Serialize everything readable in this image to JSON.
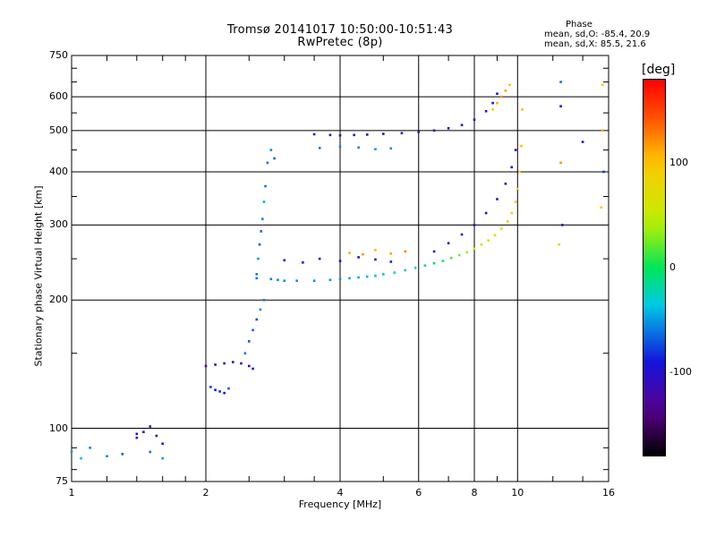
{
  "chart_data": {
    "type": "scatter",
    "title": "Tromsø 20141017 10:50:00-10:51:43",
    "subtitle": "RwPretec (8p)",
    "phase_stats": {
      "heading": "Phase",
      "o_label": "mean, sd,O:",
      "o_values": "-85.4, 20.9",
      "x_label": "mean, sd,X:",
      "x_values": "85.5, 21.6"
    },
    "xlabel": "Frequency [MHz]",
    "ylabel": "Stationary phase Virtual Height [km]",
    "x_scale": "log",
    "y_scale": "log",
    "xlim": [
      1,
      16
    ],
    "ylim": [
      75,
      750
    ],
    "x_ticks": [
      "1",
      "2",
      "4",
      "6",
      "8",
      "10",
      "16"
    ],
    "x_tick_values": [
      1,
      2,
      4,
      6,
      8,
      10,
      16
    ],
    "y_ticks": [
      "750",
      "600",
      "500",
      "400",
      "300",
      "200",
      "100",
      "75"
    ],
    "y_tick_values": [
      750,
      600,
      500,
      400,
      300,
      200,
      100,
      75
    ],
    "grid_x": [
      2,
      4,
      6,
      8,
      10
    ],
    "grid_y": [
      600,
      500,
      400,
      300,
      200,
      100
    ],
    "colorbar": {
      "label": "[deg]",
      "ticks": [
        "100",
        "0",
        "-100"
      ],
      "tick_values": [
        100,
        0,
        -100
      ],
      "range": [
        -180,
        180
      ]
    },
    "series": [
      {
        "x": [
          1.0,
          1.05,
          1.1,
          1.2,
          1.3,
          1.4,
          1.5,
          1.6
        ],
        "y": [
          88,
          85,
          90,
          86,
          87,
          95,
          88,
          85
        ],
        "phase": [
          -50,
          -40,
          -60,
          -55,
          -70,
          -90,
          -60,
          -50
        ]
      },
      {
        "x": [
          1.4,
          1.45,
          1.5,
          1.55,
          1.6
        ],
        "y": [
          97,
          98,
          101,
          96,
          92
        ],
        "phase": [
          -120,
          -110,
          -130,
          -100,
          -90
        ]
      },
      {
        "x": [
          2.0,
          2.1,
          2.2,
          2.3,
          2.4,
          2.5,
          2.55
        ],
        "y": [
          140,
          141,
          142,
          143,
          142,
          140,
          138
        ],
        "phase": [
          -130,
          -120,
          -125,
          -110,
          -115,
          -120,
          -100
        ]
      },
      {
        "x": [
          2.05,
          2.1,
          2.15,
          2.2,
          2.25
        ],
        "y": [
          125,
          123,
          122,
          121,
          124
        ],
        "phase": [
          -80,
          -90,
          -85,
          -95,
          -70
        ]
      },
      {
        "x": [
          2.45,
          2.5,
          2.55,
          2.6,
          2.65,
          2.7
        ],
        "y": [
          150,
          160,
          170,
          180,
          190,
          200
        ],
        "phase": [
          -60,
          -70,
          -65,
          -75,
          -55,
          -60
        ]
      },
      {
        "x": [
          2.6,
          2.62,
          2.64,
          2.66,
          2.68,
          2.7,
          2.72
        ],
        "y": [
          230,
          250,
          270,
          290,
          310,
          340,
          370
        ],
        "phase": [
          -60,
          -50,
          -70,
          -65,
          -55,
          -45,
          -60
        ]
      },
      {
        "x": [
          2.75,
          2.8,
          2.85
        ],
        "y": [
          420,
          450,
          430
        ],
        "phase": [
          -60,
          -55,
          -65
        ]
      },
      {
        "x": [
          2.6,
          2.8,
          2.9,
          3.0,
          3.2,
          3.5,
          3.8,
          4.0,
          4.2,
          4.4,
          4.6,
          4.8,
          5.0,
          5.3,
          5.6,
          5.9,
          6.2,
          6.5,
          6.8,
          7.1,
          7.4,
          7.7,
          8.0,
          8.3,
          8.6,
          8.9,
          9.2,
          9.5,
          9.7,
          9.9,
          10.0,
          10.1,
          10.2,
          10.25
        ],
        "y": [
          225,
          224,
          223,
          222,
          222,
          222,
          223,
          224,
          225,
          226,
          227,
          228,
          230,
          232,
          235,
          238,
          241,
          244,
          247,
          251,
          255,
          259,
          264,
          270,
          276,
          284,
          294,
          306,
          320,
          340,
          365,
          400,
          460,
          560
        ],
        "phase": [
          -60,
          -58,
          -56,
          -55,
          -54,
          -53,
          -52,
          -50,
          -48,
          -46,
          -44,
          -42,
          -40,
          -35,
          -30,
          -25,
          -15,
          -5,
          5,
          15,
          25,
          35,
          45,
          55,
          65,
          75,
          85,
          92,
          96,
          98,
          100,
          102,
          104,
          105
        ]
      },
      {
        "x": [
          3.0,
          3.3,
          3.6,
          4.0,
          4.4,
          4.8,
          5.2
        ],
        "y": [
          248,
          245,
          250,
          247,
          252,
          249,
          246
        ],
        "phase": [
          -110,
          -105,
          -100,
          -95,
          -100,
          -90,
          -85
        ]
      },
      {
        "x": [
          4.2,
          4.5,
          4.8,
          5.2,
          5.6
        ],
        "y": [
          258,
          256,
          262,
          257,
          260
        ],
        "phase": [
          110,
          120,
          105,
          115,
          125
        ]
      },
      {
        "x": [
          6.5,
          7.0,
          7.5,
          8.0,
          8.5,
          9.0,
          9.4,
          9.7,
          9.9
        ],
        "y": [
          260,
          272,
          285,
          300,
          320,
          345,
          375,
          410,
          450
        ],
        "phase": [
          -120,
          -125,
          -118,
          -122,
          -115,
          -120,
          -118,
          -112,
          -110
        ]
      },
      {
        "x": [
          3.5,
          3.8,
          4.0,
          4.3,
          4.6,
          5.0,
          5.5,
          6.0,
          6.5,
          7.0,
          7.5,
          8.0,
          8.5,
          8.8,
          9.0
        ],
        "y": [
          490,
          488,
          487,
          488,
          489,
          491,
          493,
          496,
          500,
          506,
          515,
          530,
          555,
          580,
          610
        ],
        "phase": [
          -120,
          -118,
          -122,
          -115,
          -119,
          -117,
          -120,
          -116,
          -118,
          -115,
          -113,
          -110,
          -108,
          -105,
          -100
        ]
      },
      {
        "x": [
          3.6,
          4.0,
          4.4,
          4.8,
          5.2
        ],
        "y": [
          455,
          458,
          456,
          452,
          454
        ],
        "phase": [
          -60,
          -55,
          -58,
          -50,
          -52
        ]
      },
      {
        "x": [
          8.8,
          9.0,
          9.2,
          9.4,
          9.6
        ],
        "y": [
          560,
          580,
          600,
          620,
          640
        ],
        "phase": [
          100,
          110,
          120,
          115,
          105
        ]
      },
      {
        "x": [
          12.5,
          12.5,
          12.5,
          12.6,
          12.4,
          14.0,
          15.5,
          15.5,
          15.6,
          15.4
        ],
        "y": [
          650,
          570,
          420,
          300,
          270,
          470,
          640,
          500,
          400,
          330
        ],
        "phase": [
          -60,
          -90,
          120,
          -110,
          80,
          -100,
          90,
          110,
          -80,
          100
        ]
      }
    ]
  }
}
